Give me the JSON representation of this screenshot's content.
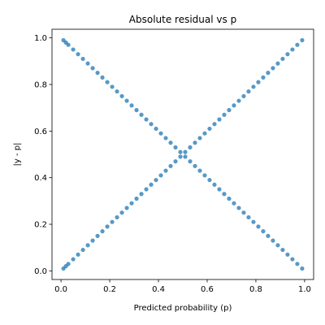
{
  "chart_data": {
    "type": "scatter",
    "title": "Absolute residual vs p",
    "xlabel": "Predicted probability (p)",
    "ylabel": "|y - p|",
    "xlim": [
      -0.037,
      1.037
    ],
    "ylim": [
      -0.037,
      1.037
    ],
    "xticks": [
      0.0,
      0.2,
      0.4,
      0.6,
      0.8,
      1.0
    ],
    "yticks": [
      0.0,
      0.2,
      0.4,
      0.6,
      0.8,
      1.0
    ],
    "xtick_labels": [
      "0.0",
      "0.2",
      "0.4",
      "0.6",
      "0.8",
      "1.0"
    ],
    "ytick_labels": [
      "0.0",
      "0.2",
      "0.4",
      "0.6",
      "0.8",
      "1.0"
    ],
    "grid": false,
    "marker_color": "#1f77b4",
    "series": [
      {
        "description": "points where y = 0, residual equals p",
        "x": [
          0.01,
          0.02,
          0.03,
          0.05,
          0.07,
          0.09,
          0.11,
          0.13,
          0.15,
          0.17,
          0.19,
          0.21,
          0.23,
          0.25,
          0.27,
          0.29,
          0.31,
          0.33,
          0.35,
          0.37,
          0.39,
          0.41,
          0.43,
          0.45,
          0.47,
          0.49,
          0.51,
          0.53,
          0.55,
          0.57,
          0.59,
          0.61,
          0.63,
          0.65,
          0.67,
          0.69,
          0.71,
          0.73,
          0.75,
          0.77,
          0.79,
          0.81,
          0.83,
          0.85,
          0.87,
          0.89,
          0.91,
          0.93,
          0.95,
          0.97,
          0.99
        ],
        "y": [
          0.01,
          0.02,
          0.03,
          0.05,
          0.07,
          0.09,
          0.11,
          0.13,
          0.15,
          0.17,
          0.19,
          0.21,
          0.23,
          0.25,
          0.27,
          0.29,
          0.31,
          0.33,
          0.35,
          0.37,
          0.39,
          0.41,
          0.43,
          0.45,
          0.47,
          0.49,
          0.51,
          0.53,
          0.55,
          0.57,
          0.59,
          0.61,
          0.63,
          0.65,
          0.67,
          0.69,
          0.71,
          0.73,
          0.75,
          0.77,
          0.79,
          0.81,
          0.83,
          0.85,
          0.87,
          0.89,
          0.91,
          0.93,
          0.95,
          0.97,
          0.99
        ]
      },
      {
        "description": "points where y = 1, residual equals 1 - p",
        "x": [
          0.01,
          0.02,
          0.03,
          0.05,
          0.07,
          0.09,
          0.11,
          0.13,
          0.15,
          0.17,
          0.19,
          0.21,
          0.23,
          0.25,
          0.27,
          0.29,
          0.31,
          0.33,
          0.35,
          0.37,
          0.39,
          0.41,
          0.43,
          0.45,
          0.47,
          0.49,
          0.51,
          0.53,
          0.55,
          0.57,
          0.59,
          0.61,
          0.63,
          0.65,
          0.67,
          0.69,
          0.71,
          0.73,
          0.75,
          0.77,
          0.79,
          0.81,
          0.83,
          0.85,
          0.87,
          0.89,
          0.91,
          0.93,
          0.95,
          0.97,
          0.99
        ],
        "y": [
          0.99,
          0.98,
          0.97,
          0.95,
          0.93,
          0.91,
          0.89,
          0.87,
          0.85,
          0.83,
          0.81,
          0.79,
          0.77,
          0.75,
          0.73,
          0.71,
          0.69,
          0.67,
          0.65,
          0.63,
          0.61,
          0.59,
          0.57,
          0.55,
          0.53,
          0.51,
          0.49,
          0.47,
          0.45,
          0.43,
          0.41,
          0.39,
          0.37,
          0.35,
          0.33,
          0.31,
          0.29,
          0.27,
          0.25,
          0.23,
          0.21,
          0.19,
          0.17,
          0.15,
          0.13,
          0.11,
          0.09,
          0.07,
          0.05,
          0.03,
          0.01
        ]
      }
    ]
  }
}
